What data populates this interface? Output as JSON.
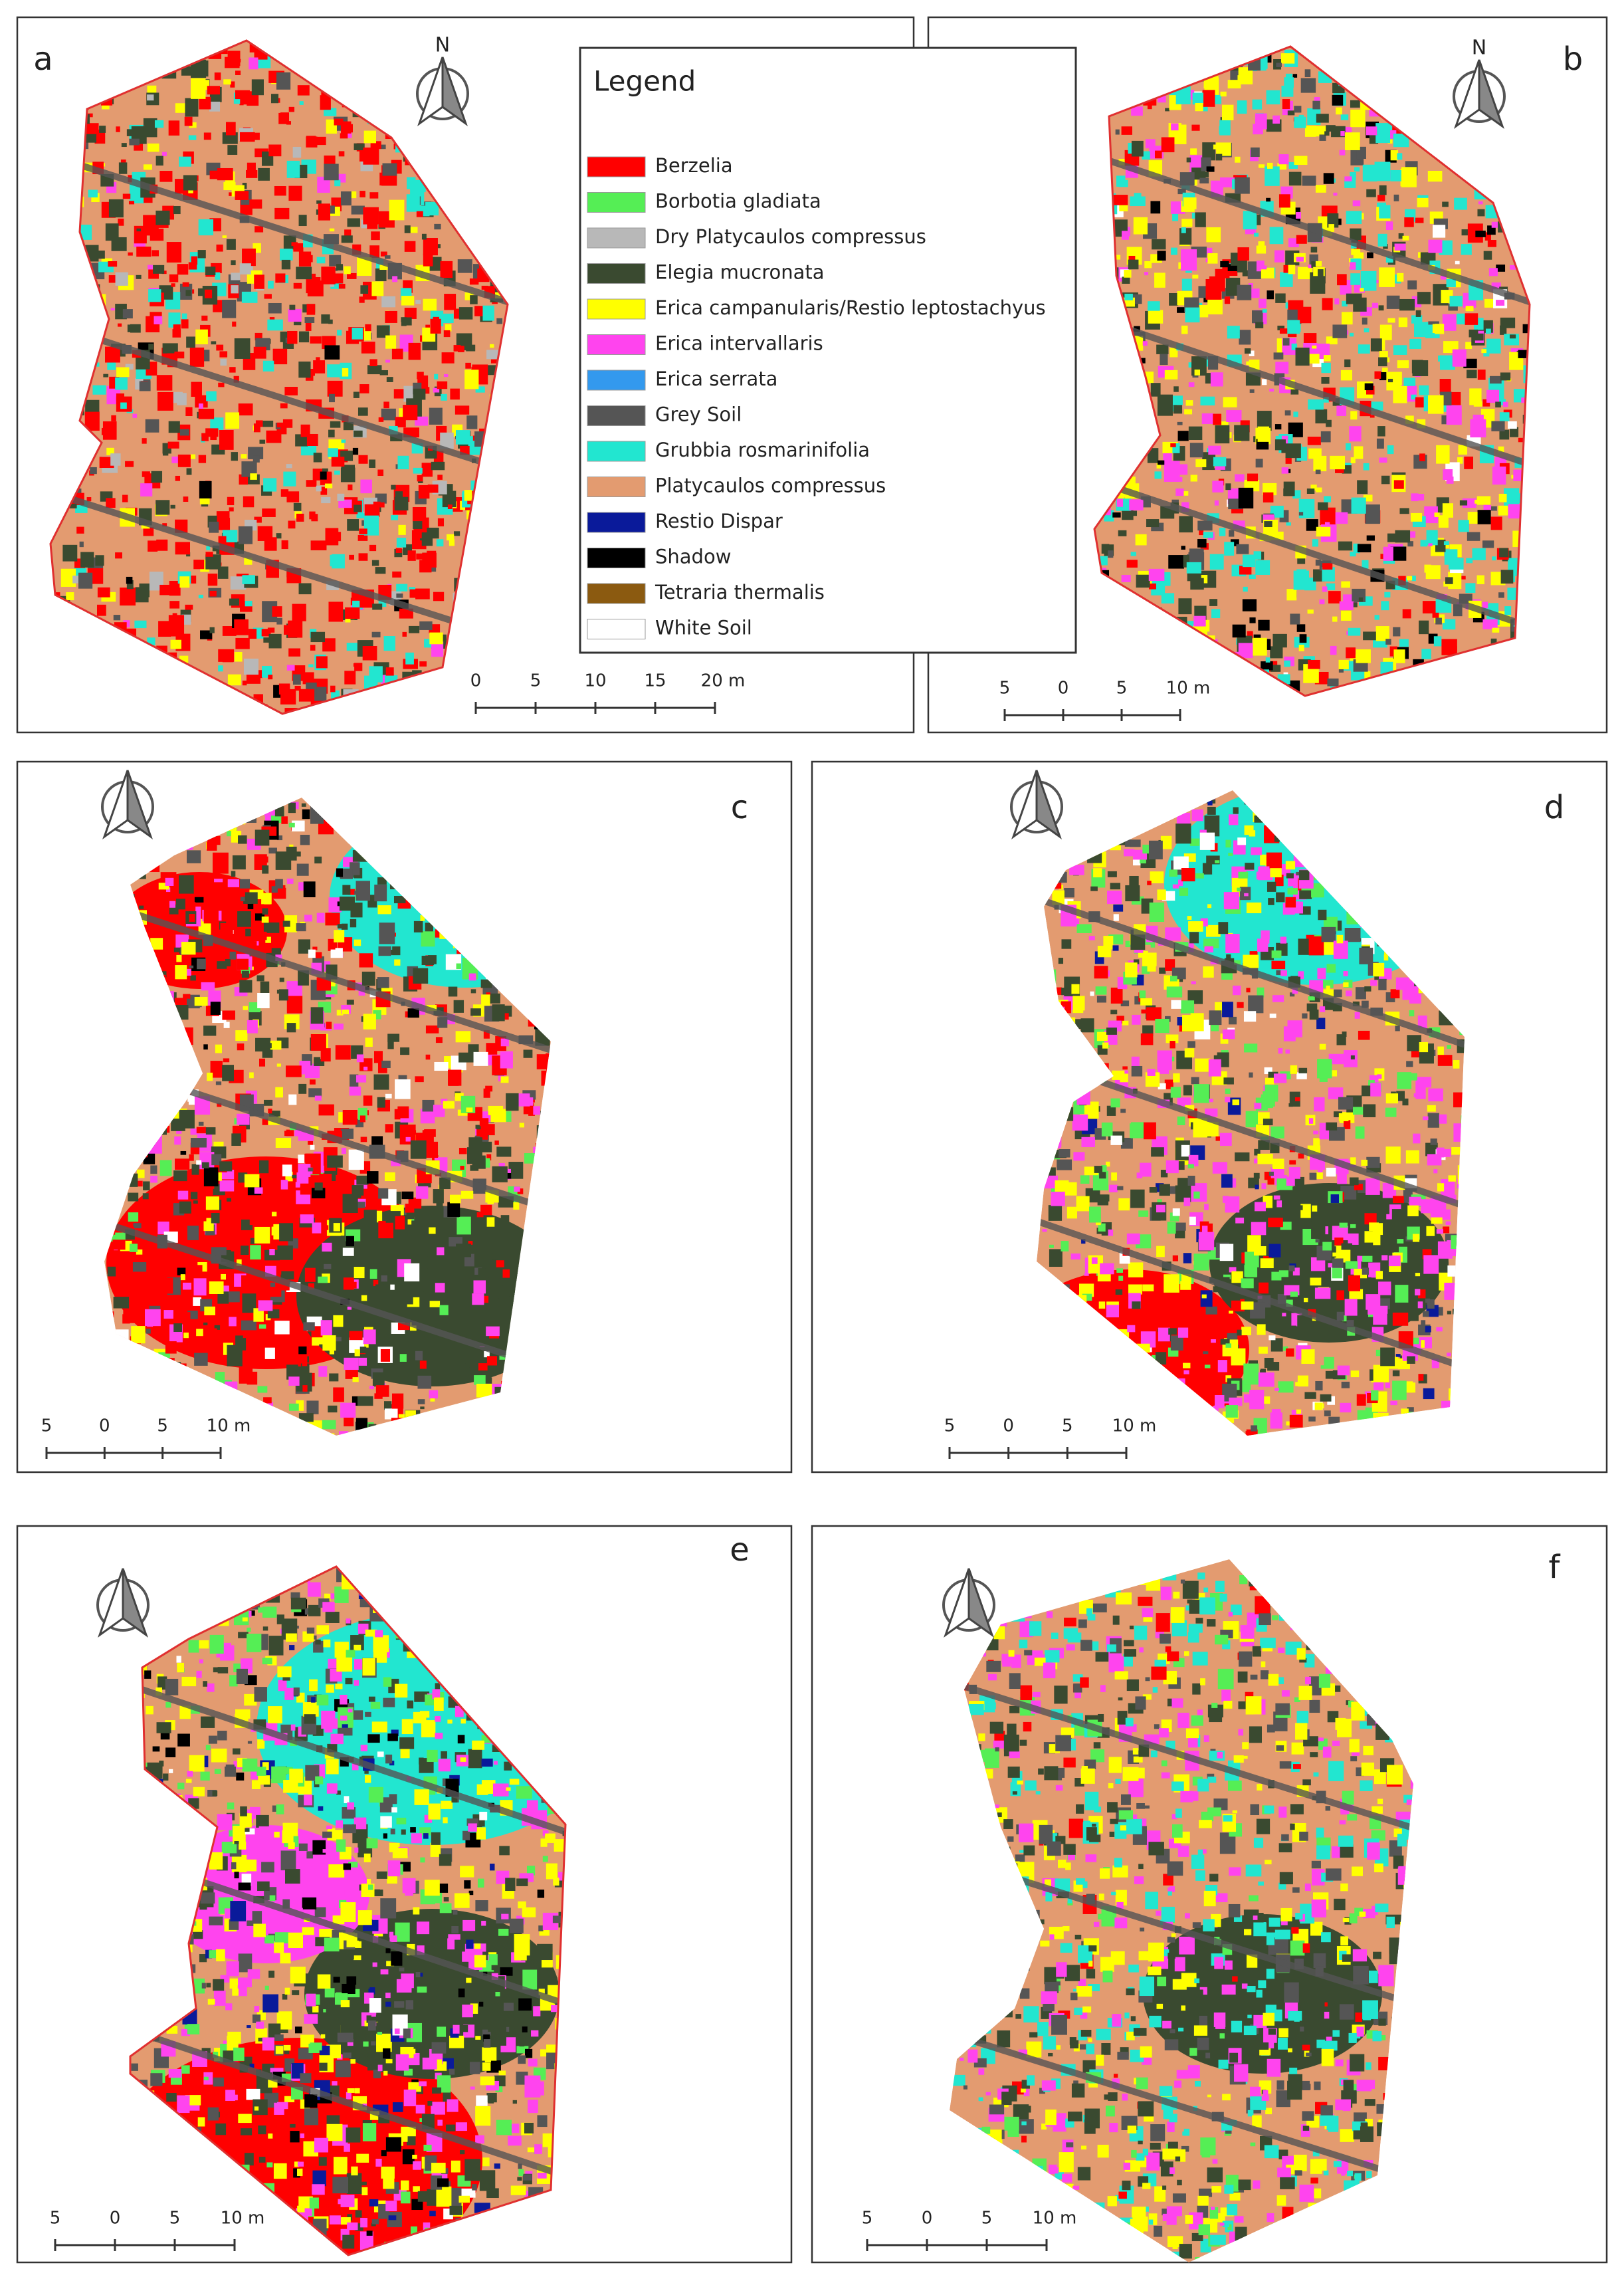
{
  "panels": [
    {
      "label": "a",
      "north": "N",
      "scale_bar": [
        "0",
        "5",
        "10",
        "15",
        "20 m"
      ]
    },
    {
      "label": "b",
      "north": "N",
      "scale_bar": [
        "5",
        "0",
        "5",
        "10 m"
      ]
    },
    {
      "label": "c",
      "scale_bar": [
        "5",
        "0",
        "5",
        "10 m"
      ]
    },
    {
      "label": "d",
      "scale_bar": [
        "5",
        "0",
        "5",
        "10 m"
      ]
    },
    {
      "label": "e",
      "scale_bar": [
        "5",
        "0",
        "5",
        "10 m"
      ]
    },
    {
      "label": "f",
      "scale_bar": [
        "5",
        "0",
        "5",
        "10 m"
      ]
    }
  ],
  "legend": {
    "title": "Legend",
    "items": [
      {
        "name": "Berzelia",
        "color": "#ff0000"
      },
      {
        "name": "Borbotia gladiata",
        "color": "#55ee55"
      },
      {
        "name": "Dry Platycaulos compressus",
        "color": "#b8b8b8"
      },
      {
        "name": "Elegia mucronata",
        "color": "#3a4a30"
      },
      {
        "name": "Erica campanularis/Restio leptostachyus",
        "color": "#ffff00"
      },
      {
        "name": "Erica intervallaris",
        "color": "#ff44ee"
      },
      {
        "name": "Erica serrata",
        "color": "#3399ee"
      },
      {
        "name": "Grey Soil",
        "color": "#555555"
      },
      {
        "name": "Grubbia rosmarinifolia",
        "color": "#22e6d0"
      },
      {
        "name": "Platycaulos compressus",
        "color": "#e39b70"
      },
      {
        "name": "Restio Dispar",
        "color": "#0a1a9a"
      },
      {
        "name": "Shadow",
        "color": "#000000"
      },
      {
        "name": "Tetraria thermalis",
        "color": "#8b5a10"
      },
      {
        "name": "White Soil",
        "color": "#ffffff"
      }
    ]
  }
}
